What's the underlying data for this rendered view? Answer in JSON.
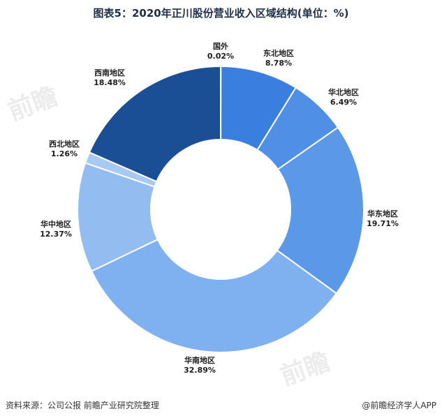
{
  "title": "图表5：2020年正川股份营业收入区域结构(单位：%)",
  "footer": {
    "source": "资料来源：公司公报 前瞻产业研究院整理",
    "credit": "@前瞻经济学人APP"
  },
  "chart_data": {
    "type": "pie",
    "donut": true,
    "categories": [
      "国外",
      "东北地区",
      "华北地区",
      "华东地区",
      "华南地区",
      "华中地区",
      "西北地区",
      "西南地区"
    ],
    "values": [
      0.02,
      8.78,
      6.49,
      19.71,
      32.89,
      12.37,
      1.26,
      18.48
    ],
    "value_labels": [
      "0.02%",
      "8.78%",
      "6.49%",
      "19.71%",
      "32.89%",
      "12.37%",
      "1.26%",
      "18.48%"
    ],
    "colors": [
      "#2d6fd0",
      "#3a7fe0",
      "#4f90e6",
      "#5b98e8",
      "#7fb0ef",
      "#93bdf0",
      "#a8c9f2",
      "#1a4f96"
    ]
  }
}
